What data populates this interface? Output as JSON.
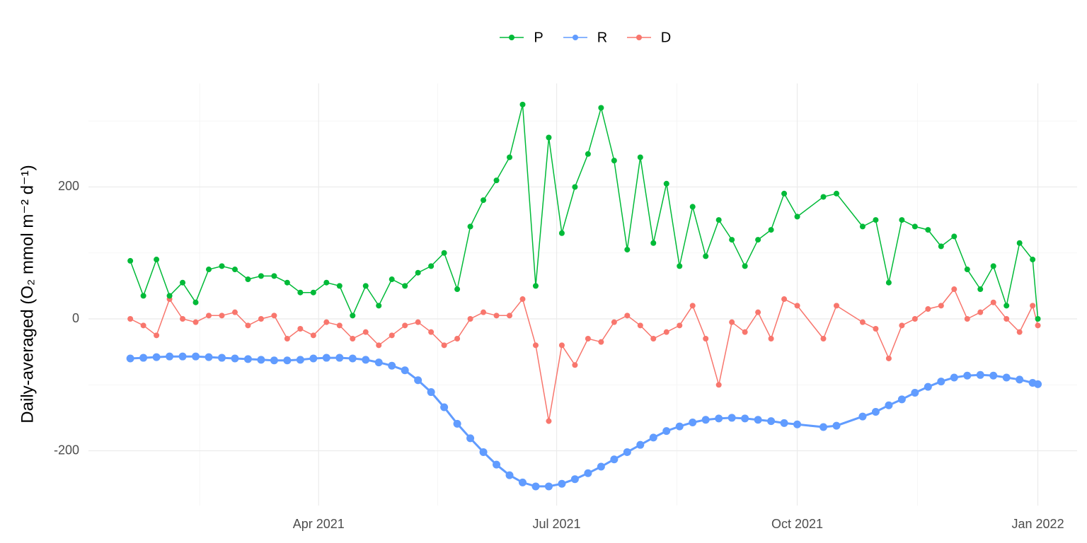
{
  "chart_data": {
    "type": "line",
    "y_label": "Daily-averaged (O₂ mmol m⁻² d⁻¹)",
    "x": [
      "2021-01-19",
      "2021-01-24",
      "2021-01-29",
      "2021-02-03",
      "2021-02-08",
      "2021-02-13",
      "2021-02-18",
      "2021-02-23",
      "2021-02-28",
      "2021-03-05",
      "2021-03-10",
      "2021-03-15",
      "2021-03-20",
      "2021-03-25",
      "2021-03-30",
      "2021-04-04",
      "2021-04-09",
      "2021-04-14",
      "2021-04-19",
      "2021-04-24",
      "2021-04-29",
      "2021-05-04",
      "2021-05-09",
      "2021-05-14",
      "2021-05-19",
      "2021-05-24",
      "2021-05-29",
      "2021-06-03",
      "2021-06-08",
      "2021-06-13",
      "2021-06-18",
      "2021-06-23",
      "2021-06-28",
      "2021-07-03",
      "2021-07-08",
      "2021-07-13",
      "2021-07-18",
      "2021-07-23",
      "2021-07-28",
      "2021-08-02",
      "2021-08-07",
      "2021-08-12",
      "2021-08-17",
      "2021-08-22",
      "2021-08-27",
      "2021-09-01",
      "2021-09-06",
      "2021-09-11",
      "2021-09-16",
      "2021-09-21",
      "2021-09-26",
      "2021-10-01",
      "2021-10-11",
      "2021-10-16",
      "2021-10-26",
      "2021-10-31",
      "2021-11-05",
      "2021-11-10",
      "2021-11-15",
      "2021-11-20",
      "2021-11-25",
      "2021-11-30",
      "2021-12-05",
      "2021-12-10",
      "2021-12-15",
      "2021-12-20",
      "2021-12-25",
      "2021-12-30",
      "2022-01-01"
    ],
    "series": [
      {
        "name": "P",
        "color": "#00ba38",
        "values": [
          88,
          35,
          90,
          35,
          55,
          25,
          75,
          80,
          75,
          60,
          65,
          65,
          55,
          40,
          40,
          55,
          50,
          5,
          50,
          20,
          60,
          50,
          70,
          80,
          100,
          45,
          140,
          180,
          210,
          245,
          325,
          50,
          275,
          130,
          200,
          250,
          320,
          240,
          105,
          245,
          115,
          205,
          80,
          170,
          95,
          150,
          120,
          80,
          120,
          135,
          190,
          155,
          185,
          190,
          140,
          150,
          55,
          150,
          140,
          135,
          110,
          125,
          75,
          45,
          80,
          20,
          115,
          90,
          0
        ]
      },
      {
        "name": "R",
        "color": "#619cff",
        "values": [
          -60,
          -59,
          -58,
          -57,
          -57,
          -57,
          -58,
          -59,
          -60,
          -61,
          -62,
          -63,
          -63,
          -62,
          -60,
          -59,
          -59,
          -60,
          -62,
          -66,
          -71,
          -78,
          -93,
          -111,
          -134,
          -159,
          -181,
          -202,
          -221,
          -237,
          -248,
          -254,
          -254,
          -250,
          -243,
          -234,
          -224,
          -213,
          -202,
          -191,
          -180,
          -170,
          -163,
          -157,
          -153,
          -151,
          -150,
          -151,
          -153,
          -155,
          -158,
          -160,
          -164,
          -162,
          -148,
          -141,
          -131,
          -122,
          -112,
          -103,
          -95,
          -89,
          -86,
          -85,
          -86,
          -89,
          -92,
          -97,
          -99
        ]
      },
      {
        "name": "D",
        "color": "#f8766d",
        "values": [
          0,
          -10,
          -25,
          30,
          0,
          -5,
          5,
          5,
          10,
          -10,
          0,
          5,
          -30,
          -15,
          -25,
          -5,
          -10,
          -30,
          -20,
          -40,
          -25,
          -10,
          -5,
          -20,
          -40,
          -30,
          0,
          10,
          5,
          5,
          30,
          -40,
          -155,
          -40,
          -70,
          -30,
          -35,
          -5,
          5,
          -10,
          -30,
          -20,
          -10,
          20,
          -30,
          -100,
          -5,
          -20,
          10,
          -30,
          30,
          20,
          -30,
          20,
          -5,
          -15,
          -60,
          -10,
          0,
          15,
          20,
          45,
          0,
          10,
          25,
          0,
          -20,
          20,
          -10
        ]
      }
    ],
    "xlim": [
      "2021-01-03",
      "2022-01-16"
    ],
    "xticks": [
      {
        "value": "2021-04-01",
        "label": "Apr 2021"
      },
      {
        "value": "2021-07-01",
        "label": "Jul 2021"
      },
      {
        "value": "2021-10-01",
        "label": "Oct 2021"
      },
      {
        "value": "2022-01-01",
        "label": "Jan 2022"
      }
    ],
    "ylim": [
      -283,
      357
    ],
    "yticks": [
      -200,
      0,
      200
    ],
    "grid": true,
    "legend": "top"
  }
}
